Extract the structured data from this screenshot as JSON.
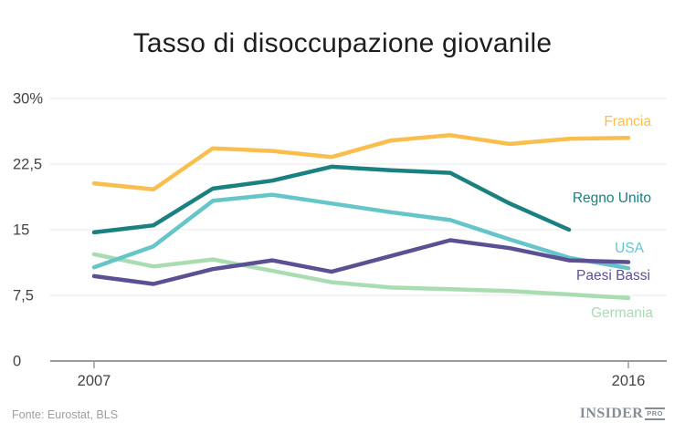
{
  "title": "Tasso di disoccupazione giovanile",
  "footer": {
    "source": "Fonte: Eurostat, BLS",
    "logo_main": "INSIDER",
    "logo_sub": "PRO"
  },
  "chart_data": {
    "type": "line",
    "x": [
      2007,
      2008,
      2009,
      2010,
      2011,
      2012,
      2013,
      2014,
      2015,
      2016
    ],
    "xticks": [
      {
        "label": "2007",
        "year": 2007
      },
      {
        "label": "2016",
        "year": 2016
      }
    ],
    "yticks": [
      {
        "label": "30%",
        "value": 30
      },
      {
        "label": "22,5",
        "value": 22.5
      },
      {
        "label": "15",
        "value": 15
      },
      {
        "label": "7,5",
        "value": 7.5
      },
      {
        "label": "0",
        "value": 0
      }
    ],
    "ylim": [
      0,
      30
    ],
    "grid": "horizontal",
    "legend_position": "right-inline",
    "series": [
      {
        "name": "Germania",
        "color": "#a9dcb1",
        "values": [
          12.2,
          10.8,
          11.6,
          10.3,
          9.0,
          8.4,
          8.2,
          8.0,
          7.6,
          7.2
        ]
      },
      {
        "name": "USA",
        "color": "#65c5c8",
        "values": [
          10.7,
          13.1,
          18.3,
          19.0,
          18.0,
          17.0,
          16.1,
          13.9,
          11.8,
          10.6
        ]
      },
      {
        "name": "Paesi Bassi",
        "color": "#5c5094",
        "values": [
          9.7,
          8.8,
          10.5,
          11.5,
          10.2,
          12.0,
          13.8,
          12.9,
          11.5,
          11.3
        ]
      },
      {
        "name": "Regno Unito",
        "color": "#1a8080",
        "values": [
          14.7,
          15.5,
          19.7,
          20.6,
          22.2,
          21.8,
          21.5,
          18.0,
          15.0,
          null
        ]
      },
      {
        "name": "Francia",
        "color": "#f9be4d",
        "values": [
          20.3,
          19.6,
          24.3,
          24.0,
          23.3,
          25.2,
          25.8,
          24.8,
          25.4,
          25.5
        ]
      }
    ],
    "axis_color": "#9b9b9b",
    "gridline_color": "#e9e9e9",
    "tick_label_color": "#444444"
  }
}
